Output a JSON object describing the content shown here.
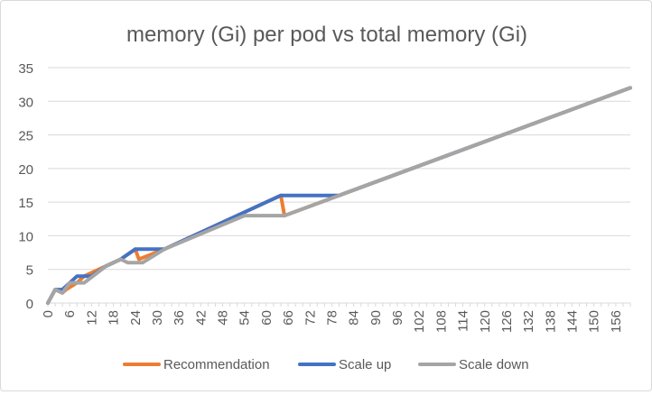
{
  "chart_data": {
    "type": "line",
    "title": "memory (Gi) per pod vs total memory (Gi)",
    "xlabel": "",
    "ylabel": "",
    "ylim": [
      0,
      35
    ],
    "yticks": [
      0,
      5,
      10,
      15,
      20,
      25,
      30,
      35
    ],
    "xticks": [
      0,
      6,
      12,
      18,
      24,
      30,
      36,
      42,
      48,
      54,
      60,
      66,
      72,
      78,
      84,
      90,
      96,
      102,
      108,
      114,
      120,
      126,
      132,
      138,
      144,
      150,
      156
    ],
    "xlim": [
      0,
      160
    ],
    "grid": true,
    "legend_position": "bottom",
    "colors": {
      "recommendation": "#ed7d31",
      "scale_up": "#4472c4",
      "scale_down": "#a5a5a5",
      "grid": "#d9d9d9",
      "text": "#595959"
    },
    "series": [
      {
        "name": "Recommendation",
        "points": [
          [
            0,
            0
          ],
          [
            2,
            2
          ],
          [
            4,
            1.5
          ],
          [
            5,
            2
          ],
          [
            8,
            3
          ],
          [
            9,
            3.5
          ],
          [
            10,
            4
          ],
          [
            16,
            5.5
          ],
          [
            20,
            6.5
          ],
          [
            24,
            8
          ],
          [
            25,
            6.5
          ],
          [
            32,
            8
          ],
          [
            56,
            14
          ],
          [
            64,
            16
          ],
          [
            65,
            13
          ],
          [
            160,
            32
          ]
        ]
      },
      {
        "name": "Scale up",
        "points": [
          [
            0,
            0
          ],
          [
            2,
            2
          ],
          [
            4,
            2
          ],
          [
            8,
            4
          ],
          [
            12,
            4
          ],
          [
            16,
            5.5
          ],
          [
            20,
            6.5
          ],
          [
            24,
            8
          ],
          [
            32,
            8
          ],
          [
            56,
            14
          ],
          [
            62,
            15.5
          ],
          [
            64,
            16
          ],
          [
            80,
            16
          ],
          [
            160,
            32
          ]
        ]
      },
      {
        "name": "Scale down",
        "points": [
          [
            0,
            0
          ],
          [
            2,
            2
          ],
          [
            4,
            1.5
          ],
          [
            6,
            3
          ],
          [
            10,
            3
          ],
          [
            16,
            5.5
          ],
          [
            20,
            6.5
          ],
          [
            22,
            6
          ],
          [
            26,
            6
          ],
          [
            32,
            8
          ],
          [
            54,
            13
          ],
          [
            65,
            13
          ],
          [
            80,
            16
          ],
          [
            160,
            32
          ]
        ]
      }
    ]
  }
}
